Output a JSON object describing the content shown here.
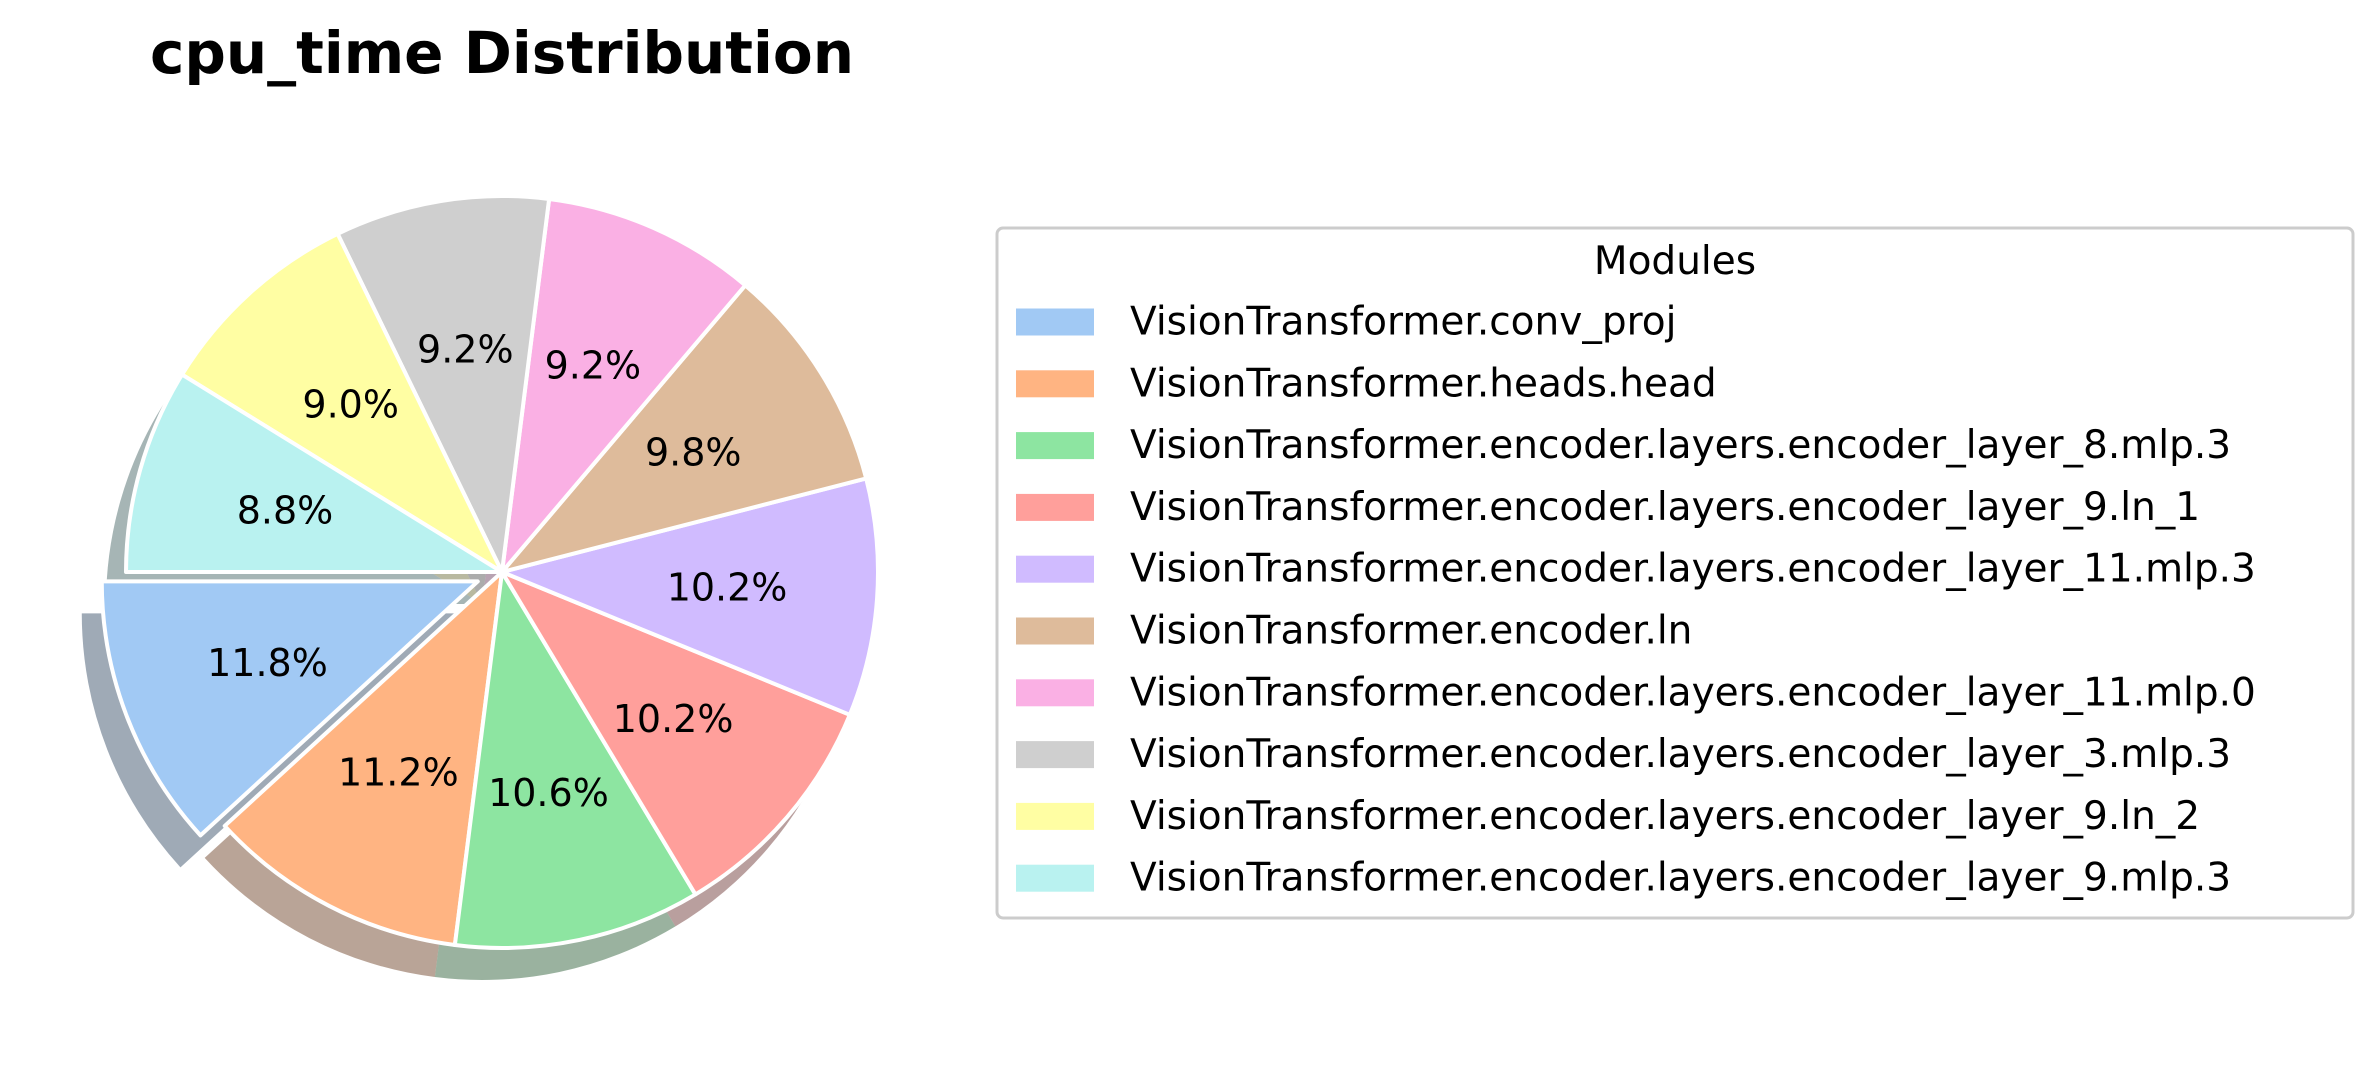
{
  "chart_data": {
    "type": "pie",
    "title": "cpu_time Distribution",
    "legend_title": "Modules",
    "legend_position": "right",
    "start_angle_deg": 180,
    "direction": "counterclockwise",
    "shadow": true,
    "exploded_slice_index": 0,
    "slices": [
      {
        "label": "VisionTransformer.conv_proj",
        "value": 11.8,
        "pct_label": "11.8%",
        "color": "#a1c9f4"
      },
      {
        "label": "VisionTransformer.heads.head",
        "value": 11.2,
        "pct_label": "11.2%",
        "color": "#ffb482"
      },
      {
        "label": "VisionTransformer.encoder.layers.encoder_layer_8.mlp.3",
        "value": 10.6,
        "pct_label": "10.6%",
        "color": "#8de5a1"
      },
      {
        "label": "VisionTransformer.encoder.layers.encoder_layer_9.ln_1",
        "value": 10.2,
        "pct_label": "10.2%",
        "color": "#ff9f9b"
      },
      {
        "label": "VisionTransformer.encoder.layers.encoder_layer_11.mlp.3",
        "value": 10.2,
        "pct_label": "10.2%",
        "color": "#d0bbff"
      },
      {
        "label": "VisionTransformer.encoder.ln",
        "value": 9.8,
        "pct_label": "9.8%",
        "color": "#debb9b"
      },
      {
        "label": "VisionTransformer.encoder.layers.encoder_layer_11.mlp.0",
        "value": 9.2,
        "pct_label": "9.2%",
        "color": "#fab0e4"
      },
      {
        "label": "VisionTransformer.encoder.layers.encoder_layer_3.mlp.3",
        "value": 9.2,
        "pct_label": "9.2%",
        "color": "#cfcfcf"
      },
      {
        "label": "VisionTransformer.encoder.layers.encoder_layer_9.ln_2",
        "value": 9.0,
        "pct_label": "9.0%",
        "color": "#fffea3"
      },
      {
        "label": "VisionTransformer.encoder.layers.encoder_layer_9.mlp.3",
        "value": 8.8,
        "pct_label": "8.8%",
        "color": "#b9f2f0"
      }
    ]
  }
}
